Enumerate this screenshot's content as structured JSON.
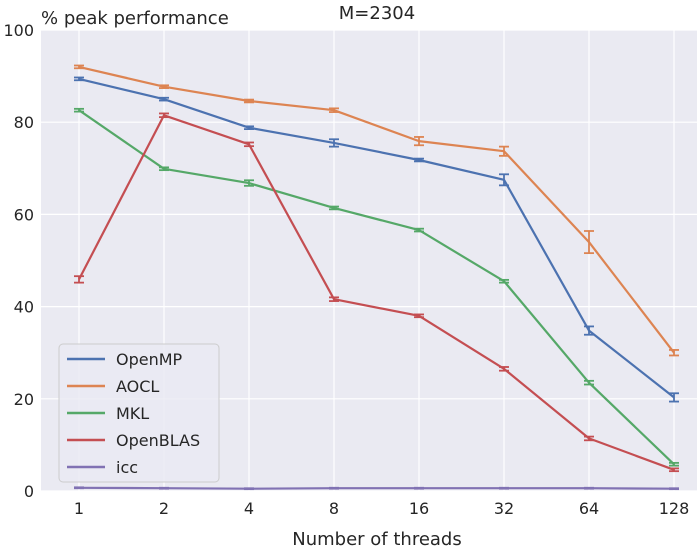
{
  "chart_data": {
    "type": "line",
    "title": "M=2304",
    "ylabel": "% peak performance",
    "xlabel": "Number of threads",
    "categories": [
      "1",
      "2",
      "4",
      "8",
      "16",
      "32",
      "64",
      "128"
    ],
    "ylim": [
      0,
      100
    ],
    "yticks": [
      0,
      20,
      40,
      60,
      80,
      100
    ],
    "grid": true,
    "legend_position": "bottom-left",
    "series": [
      {
        "name": "OpenMP",
        "color": "#4c72b0",
        "values": [
          89.4,
          85.0,
          78.8,
          75.5,
          71.8,
          67.5,
          34.8,
          20.3
        ],
        "errors": [
          0.3,
          0.3,
          0.3,
          0.8,
          0.3,
          1.2,
          0.9,
          0.9
        ]
      },
      {
        "name": "AOCL",
        "color": "#dd8452",
        "values": [
          92.0,
          87.7,
          84.6,
          82.6,
          75.9,
          73.7,
          54.0,
          30.0
        ],
        "errors": [
          0.3,
          0.3,
          0.3,
          0.4,
          0.9,
          1.0,
          2.4,
          0.6
        ]
      },
      {
        "name": "MKL",
        "color": "#55a868",
        "values": [
          82.6,
          69.9,
          66.8,
          61.4,
          56.6,
          45.5,
          23.5,
          5.8
        ],
        "errors": [
          0.3,
          0.3,
          0.6,
          0.3,
          0.3,
          0.3,
          0.4,
          0.3
        ]
      },
      {
        "name": "OpenBLAS",
        "color": "#c44e52",
        "values": [
          45.9,
          81.5,
          75.2,
          41.6,
          38.0,
          26.5,
          11.4,
          4.6
        ],
        "errors": [
          0.7,
          0.4,
          0.4,
          0.4,
          0.3,
          0.4,
          0.4,
          0.3
        ]
      },
      {
        "name": "icc",
        "color": "#8172b3",
        "values": [
          0.7,
          0.6,
          0.5,
          0.6,
          0.6,
          0.6,
          0.6,
          0.5
        ],
        "errors": [
          0.1,
          0.1,
          0.1,
          0.1,
          0.1,
          0.1,
          0.1,
          0.1
        ]
      }
    ]
  }
}
